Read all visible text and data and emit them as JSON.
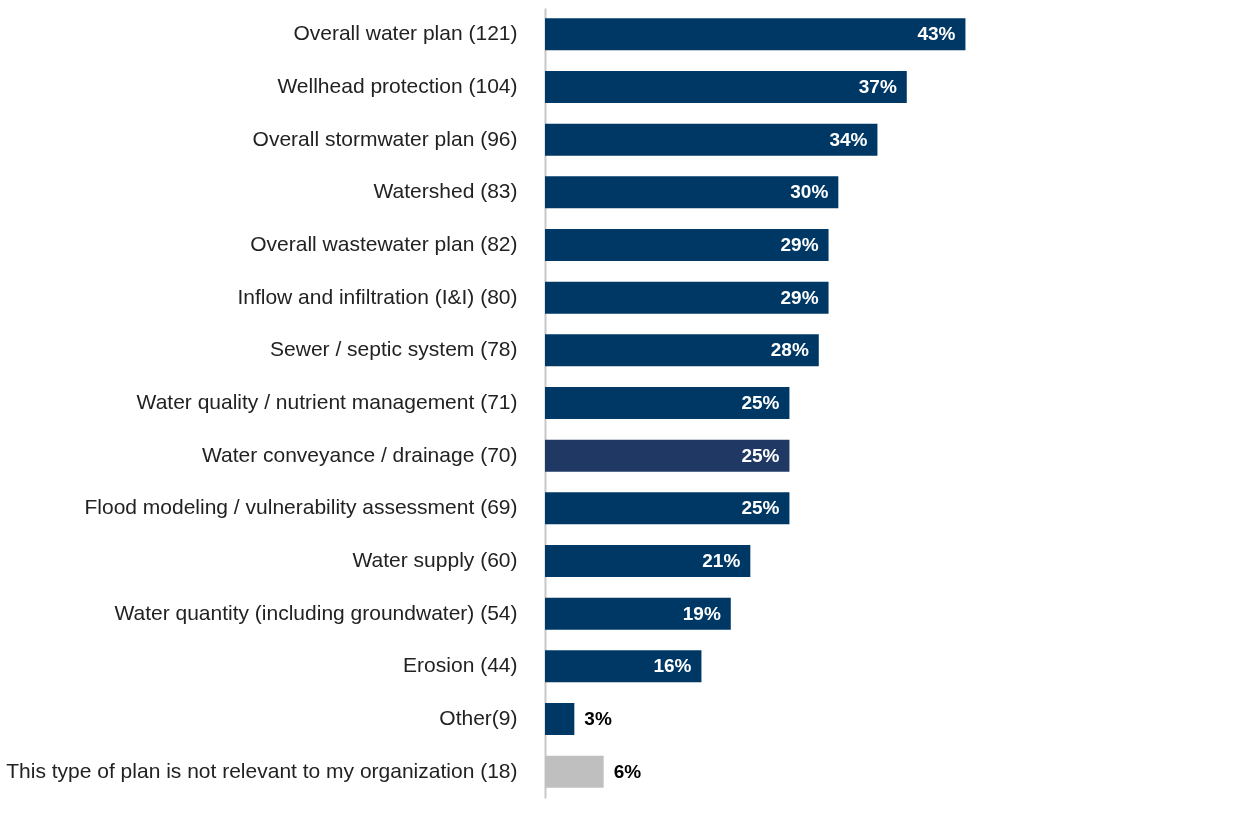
{
  "chart_data": {
    "type": "bar",
    "orientation": "horizontal",
    "data_labels": true,
    "categories": [
      "Overall water plan (121)",
      "Wellhead protection (104)",
      "Overall stormwater plan (96)",
      "Watershed (83)",
      "Overall wastewater plan (82)",
      "Inflow and infiltration (I&I) (80)",
      "Sewer / septic system (78)",
      "Water quality / nutrient management (71)",
      "Water conveyance / drainage (70)",
      "Flood modeling / vulnerability assessment (69)",
      "Water supply (60)",
      "Water quantity (including groundwater) (54)",
      "Erosion (44)",
      "Other(9)",
      "This type of plan is not relevant to my organization (18)"
    ],
    "values": [
      43,
      37,
      34,
      30,
      29,
      29,
      28,
      25,
      25,
      25,
      21,
      19,
      16,
      3,
      6
    ],
    "value_labels": [
      "43%",
      "37%",
      "34%",
      "30%",
      "29%",
      "29%",
      "28%",
      "25%",
      "25%",
      "25%",
      "21%",
      "19%",
      "16%",
      "3%",
      "6%"
    ],
    "colors": [
      "#003865",
      "#003865",
      "#003865",
      "#003865",
      "#003865",
      "#003865",
      "#003865",
      "#003865",
      "#1f3864",
      "#003865",
      "#003865",
      "#003865",
      "#003865",
      "#003865",
      "#bfbfbf"
    ]
  }
}
